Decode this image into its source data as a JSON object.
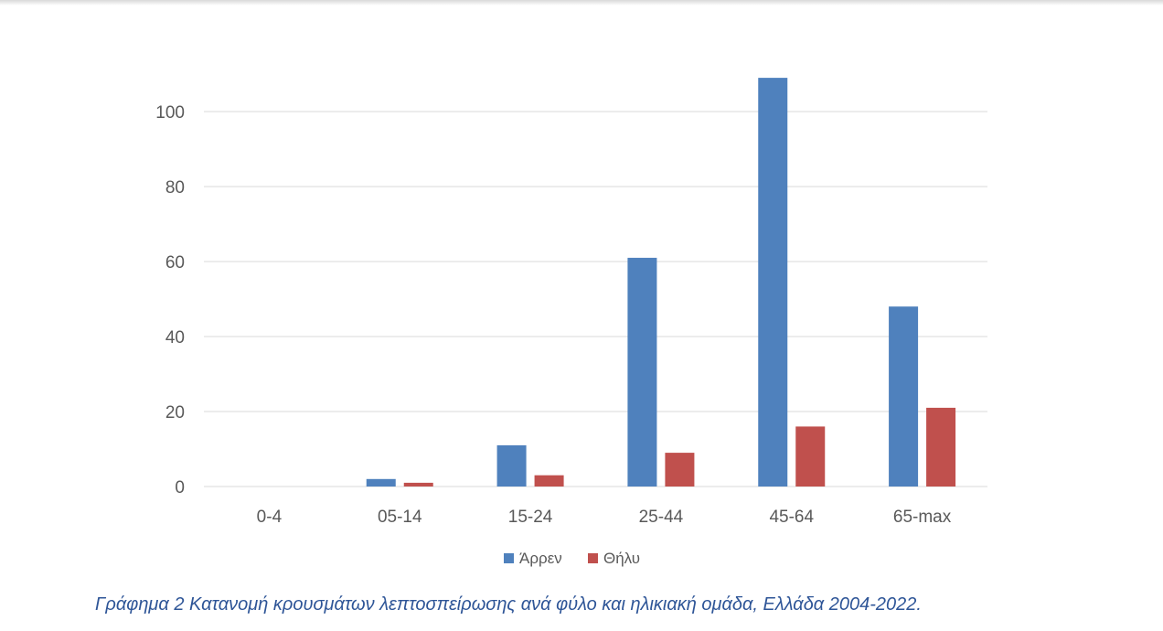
{
  "chart_data": {
    "type": "bar",
    "categories": [
      "0-4",
      "05-14",
      "15-24",
      "25-44",
      "45-64",
      "65-max"
    ],
    "series": [
      {
        "name": "Άρρεν",
        "values": [
          0,
          2,
          11,
          61,
          109,
          48
        ],
        "color": "#4f81bd"
      },
      {
        "name": "Θήλυ",
        "values": [
          0,
          1,
          3,
          9,
          16,
          21
        ],
        "color": "#c0504d"
      }
    ],
    "ylim": [
      0,
      110
    ],
    "yticks": [
      0,
      20,
      40,
      60,
      80,
      100
    ],
    "grid": true,
    "legend": "bottom-center",
    "caption": "Γράφημα 2 Κατανομή κρουσμάτων λεπτοσπείρωσης ανά φύλο και ηλικιακή ομάδα, Ελλάδα 2004-2022."
  }
}
